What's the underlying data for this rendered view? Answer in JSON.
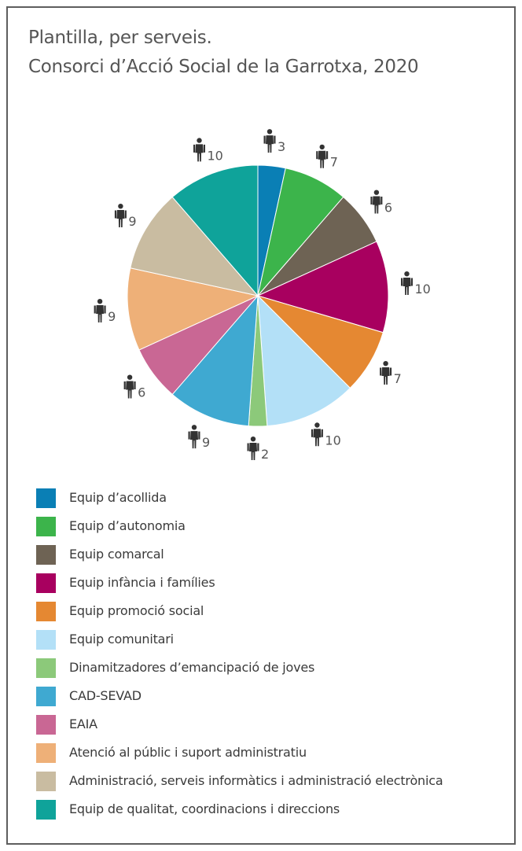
{
  "title_line1": "Plantilla, per serveis.",
  "title_line2": "Consorci d’Acció Social de la Garrotxa, 2020",
  "icon": "person-icon",
  "chart_data": {
    "type": "pie",
    "title": "Plantilla, per serveis. Consorci d’Acció Social de la Garrotxa, 2020",
    "legend_position": "bottom",
    "categories": [
      "Equip d’acollida",
      "Equip d’autonomia",
      "Equip comarcal",
      "Equip infància i famílies",
      "Equip promoció social",
      "Equip comunitari",
      "Dinamitzadores d’emancipació de joves",
      "CAD-SEVAD",
      "EAIA",
      "Atenció al públic i suport administratiu",
      "Administració, serveis informàtics i administració electrònica",
      "Equip de qualitat, coordinacions i direccions"
    ],
    "values": [
      3,
      7,
      6,
      10,
      7,
      10,
      2,
      9,
      6,
      9,
      9,
      10
    ],
    "colors": [
      "#0a7fb5",
      "#3cb44b",
      "#6e6354",
      "#a8005f",
      "#e58832",
      "#b3e0f7",
      "#8cc97a",
      "#3fa9d1",
      "#c96794",
      "#eeb078",
      "#c9bca1",
      "#0fa39a"
    ]
  }
}
